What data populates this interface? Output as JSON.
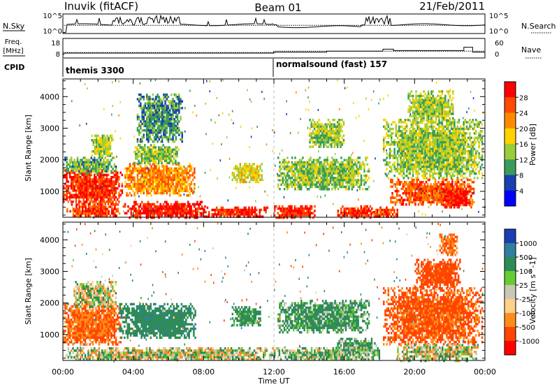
{
  "header": {
    "station": "Inuvik (fitACF)",
    "beam": "Beam 01",
    "date": "21/Feb/2011"
  },
  "top_panels": {
    "nsky_label": "N.Sky",
    "nsky_ticks": [
      "10^5",
      "10^0"
    ],
    "nsearch_label": "N.Search",
    "nsearch_ticks": [
      "10^5",
      "10^0"
    ],
    "freq_label_1": "Freq.",
    "freq_label_2": "[MHz]",
    "freq_ticks": [
      "18",
      "8"
    ],
    "nave_label": "Nave",
    "nave_ticks": [
      "60",
      "0"
    ],
    "cpid_label": "CPID",
    "cpid_segments": [
      {
        "name": "themis 3300",
        "start_h": 0,
        "end_h": 12
      },
      {
        "name": "normalsound (fast) 157",
        "start_h": 12,
        "end_h": 24
      }
    ]
  },
  "chart_data": [
    {
      "type": "heatmap",
      "name": "power",
      "ylabel": "Slant Range [km]",
      "xlabel": "",
      "x_ticks": [
        "00:00",
        "04:00",
        "08:00",
        "12:00",
        "16:00",
        "20:00",
        "00:00"
      ],
      "x_range_hours": [
        0,
        24
      ],
      "y_ticks": [
        "1000",
        "2000",
        "3000",
        "4000"
      ],
      "ylim_km": [
        180,
        4560
      ],
      "colorbar_label": "Power [dB]",
      "colorbar_ticks": [
        "28",
        "24",
        "20",
        "16",
        "12",
        "8",
        "4"
      ],
      "colorbar_colors": [
        "#ff0000",
        "#ff4a00",
        "#ff8a00",
        "#ffd200",
        "#9ccc3a",
        "#3a9c5a",
        "#1a3fb0",
        "#0000ff"
      ],
      "blobs": [
        {
          "t0": 0.0,
          "t1": 3.4,
          "r0": 620,
          "r1": 1700,
          "v": 26
        },
        {
          "t0": 0.0,
          "t1": 3.0,
          "r0": 1600,
          "r1": 2100,
          "v": 10
        },
        {
          "t0": 1.6,
          "t1": 2.8,
          "r0": 2100,
          "r1": 2800,
          "v": 13
        },
        {
          "t0": 0.2,
          "t1": 3.2,
          "r0": 200,
          "r1": 620,
          "v": 25
        },
        {
          "t0": 3.4,
          "t1": 8.2,
          "r0": 200,
          "r1": 700,
          "v": 27
        },
        {
          "t0": 3.5,
          "t1": 7.5,
          "r0": 900,
          "r1": 1900,
          "v": 20
        },
        {
          "t0": 4.0,
          "t1": 6.6,
          "r0": 1900,
          "r1": 2500,
          "v": 11
        },
        {
          "t0": 4.2,
          "t1": 6.8,
          "r0": 2600,
          "r1": 4100,
          "v": 8
        },
        {
          "t0": 9.6,
          "t1": 11.3,
          "r0": 1300,
          "r1": 1900,
          "v": 15
        },
        {
          "t0": 8.0,
          "t1": 11.6,
          "r0": 200,
          "r1": 520,
          "v": 27
        },
        {
          "t0": 12.2,
          "t1": 17.4,
          "r0": 1100,
          "r1": 2100,
          "v": 11
        },
        {
          "t0": 14.0,
          "t1": 16.0,
          "r0": 2400,
          "r1": 3300,
          "v": 12
        },
        {
          "t0": 12.0,
          "t1": 14.4,
          "r0": 200,
          "r1": 560,
          "v": 27
        },
        {
          "t0": 15.6,
          "t1": 17.6,
          "r0": 200,
          "r1": 560,
          "v": 26
        },
        {
          "t0": 17.4,
          "t1": 19.0,
          "r0": 200,
          "r1": 520,
          "v": 25
        },
        {
          "t0": 18.2,
          "t1": 23.8,
          "r0": 1400,
          "r1": 3300,
          "v": 12
        },
        {
          "t0": 18.6,
          "t1": 23.4,
          "r0": 600,
          "r1": 1400,
          "v": 23
        },
        {
          "t0": 21.6,
          "t1": 23.2,
          "r0": 500,
          "r1": 1100,
          "v": 28
        },
        {
          "t0": 19.6,
          "t1": 22.2,
          "r0": 3200,
          "r1": 4200,
          "v": 12
        }
      ]
    },
    {
      "type": "heatmap",
      "name": "velocity",
      "ylabel": "Slant Range [km]",
      "xlabel": "Time UT",
      "x_ticks": [
        "00:00",
        "04:00",
        "08:00",
        "12:00",
        "16:00",
        "20:00",
        "00:00"
      ],
      "x_range_hours": [
        0,
        24
      ],
      "y_ticks": [
        "1000",
        "2000",
        "3000",
        "4000"
      ],
      "ylim_km": [
        180,
        4560
      ],
      "colorbar_label": "Velocity [m s^-1]",
      "colorbar_ticks": [
        "1000",
        "500",
        "100",
        "25",
        "-25",
        "-100",
        "-500",
        "-1000"
      ],
      "colorbar_colors": [
        "#1a3fb0",
        "#2f7fa0",
        "#2e8b57",
        "#66cc33",
        "#c8c8b4",
        "#ffd08a",
        "#ff8c1a",
        "#ff4500",
        "#ff0000"
      ],
      "blobs": [
        {
          "t0": 0.0,
          "t1": 3.3,
          "r0": 700,
          "r1": 2000,
          "v": -300
        },
        {
          "t0": 0.6,
          "t1": 3.0,
          "r0": 1900,
          "r1": 2700,
          "v": 0
        },
        {
          "t0": 3.2,
          "t1": 7.5,
          "r0": 900,
          "r1": 2000,
          "v": 200
        },
        {
          "t0": 0.0,
          "t1": 12.0,
          "r0": 200,
          "r1": 600,
          "v": 0
        },
        {
          "t0": 9.6,
          "t1": 11.2,
          "r0": 1300,
          "r1": 1900,
          "v": 150
        },
        {
          "t0": 12.2,
          "t1": 17.4,
          "r0": 1100,
          "r1": 2100,
          "v": 120
        },
        {
          "t0": 12.0,
          "t1": 18.0,
          "r0": 200,
          "r1": 600,
          "v": 60
        },
        {
          "t0": 15.5,
          "t1": 17.8,
          "r0": 400,
          "r1": 900,
          "v": 90
        },
        {
          "t0": 18.2,
          "t1": 23.8,
          "r0": 700,
          "r1": 2500,
          "v": -350
        },
        {
          "t0": 20.0,
          "t1": 22.6,
          "r0": 2500,
          "r1": 3400,
          "v": -400
        },
        {
          "t0": 21.4,
          "t1": 22.4,
          "r0": 3500,
          "r1": 4200,
          "v": -300
        },
        {
          "t0": 19.0,
          "t1": 23.6,
          "r0": 200,
          "r1": 700,
          "v": 10
        }
      ]
    }
  ]
}
